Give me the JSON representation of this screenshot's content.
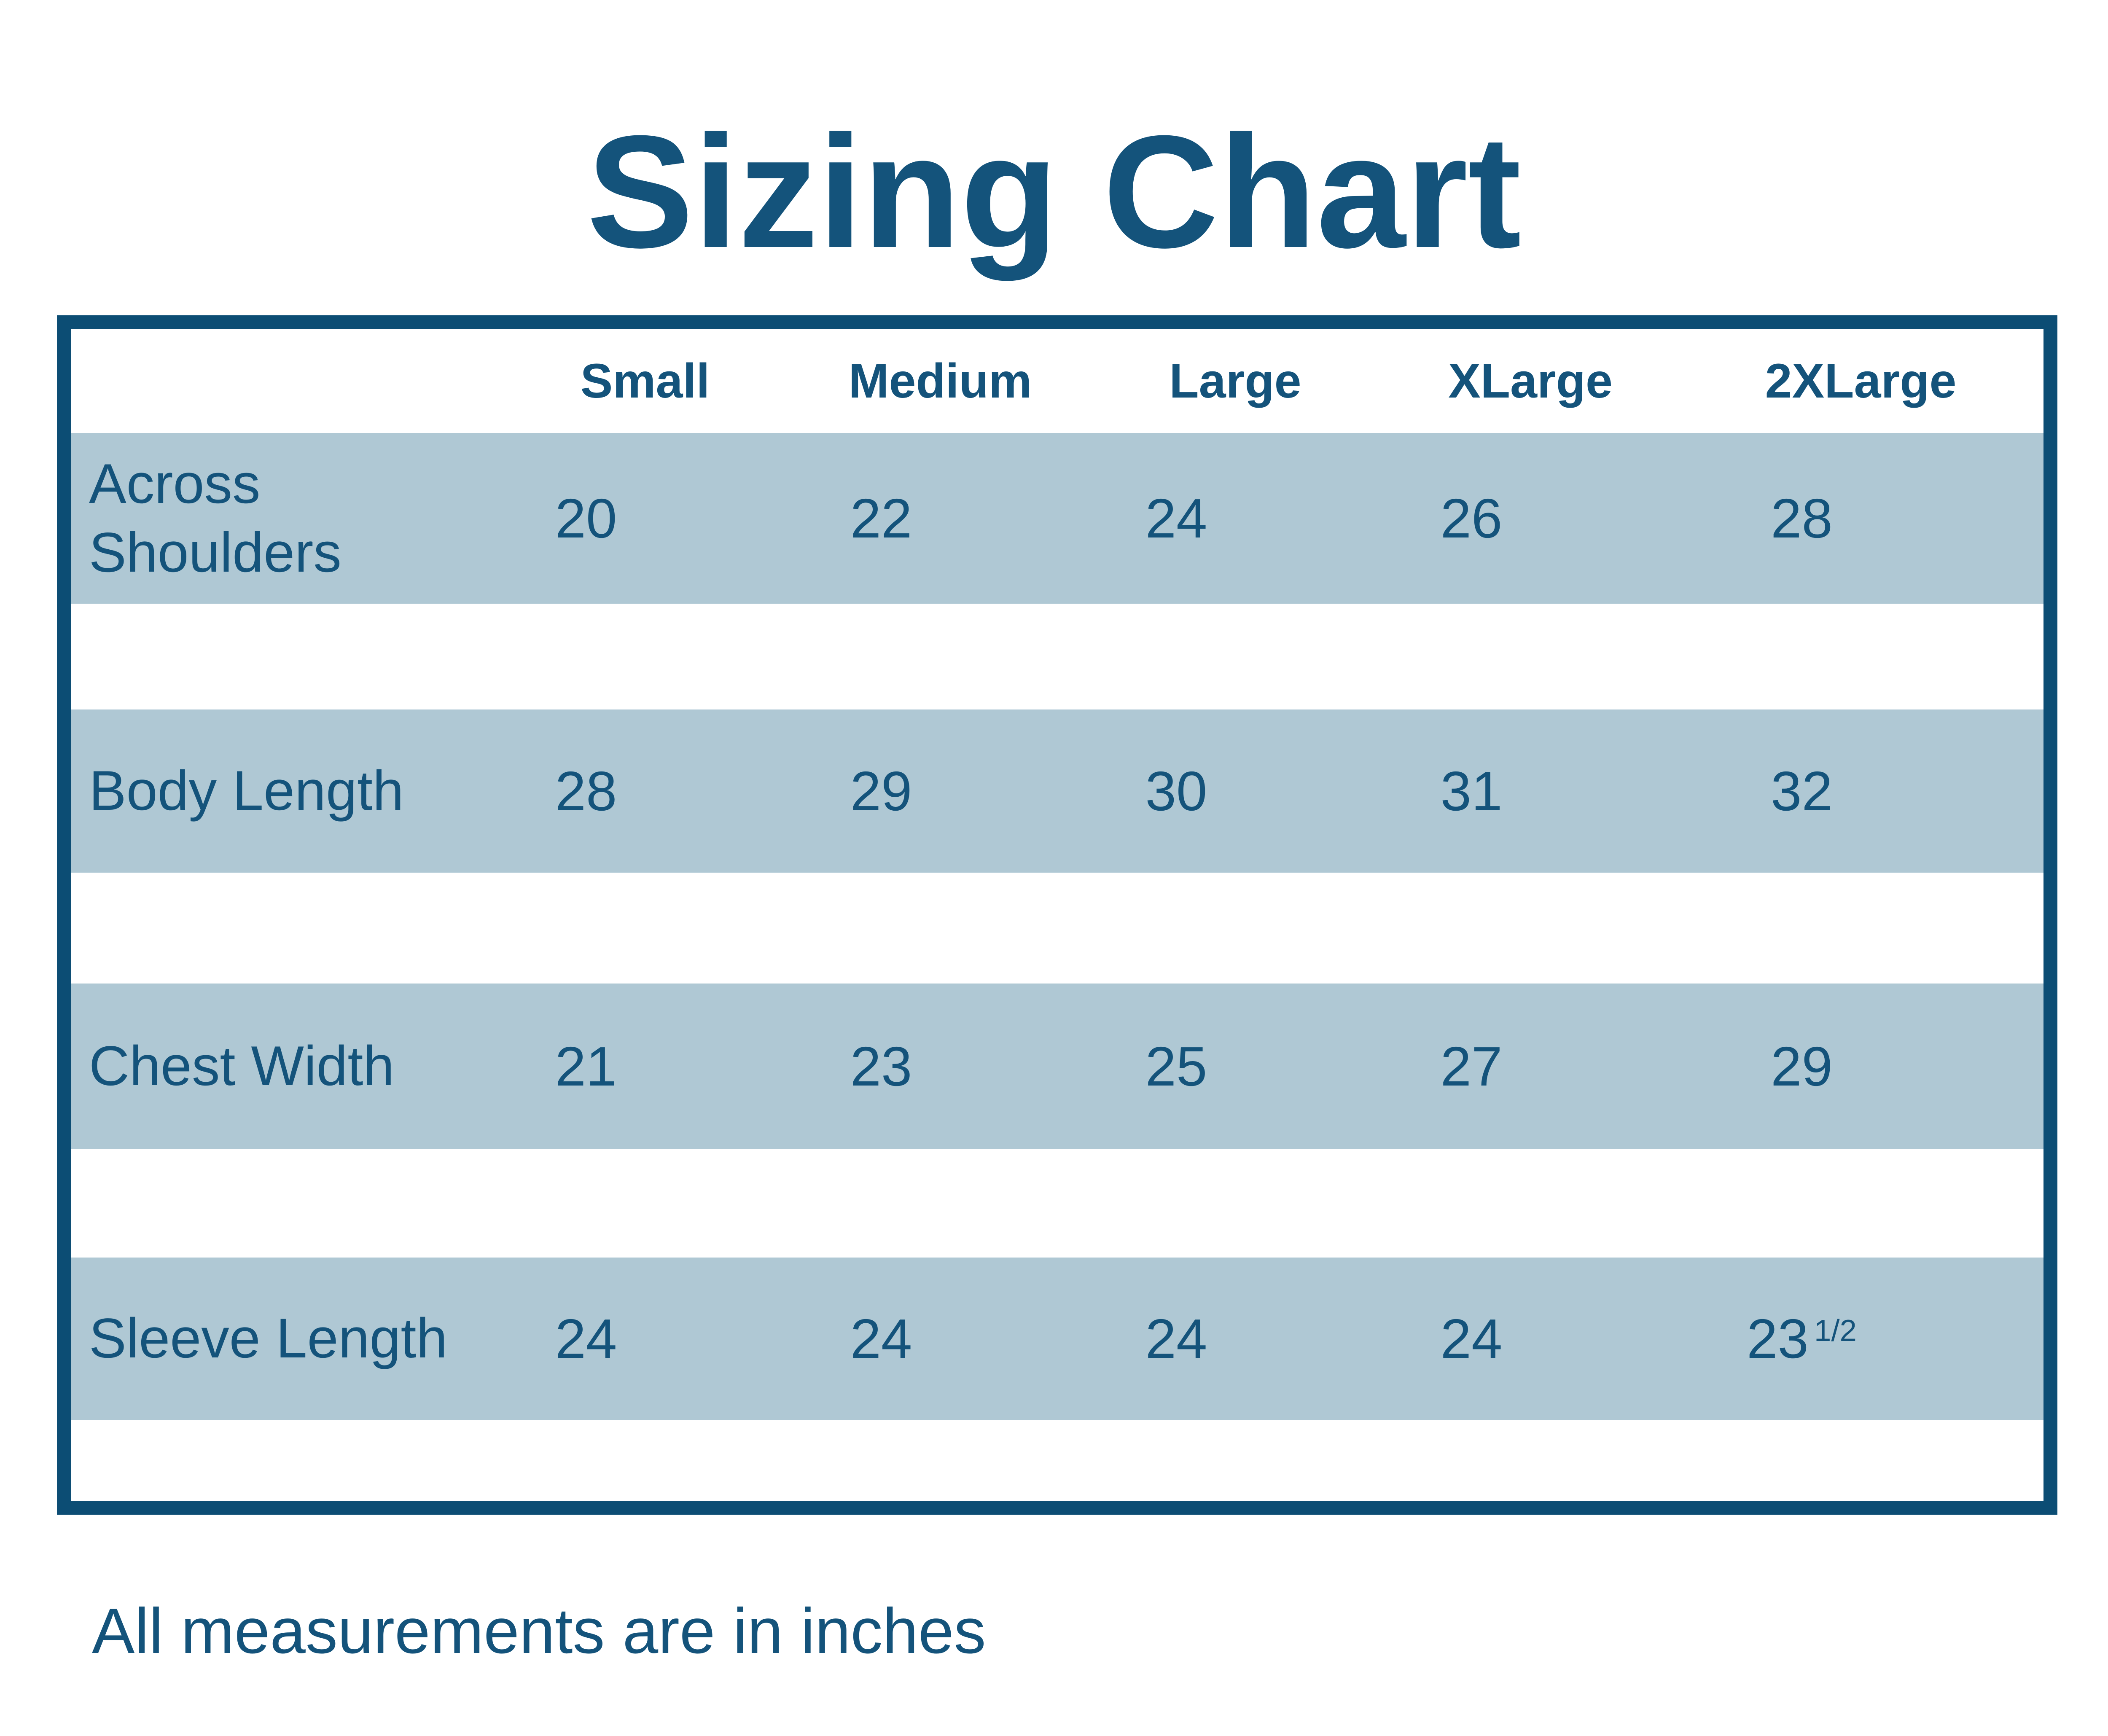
{
  "page": {
    "title": "Sizing Chart",
    "footnote": "All measurements are in inches"
  },
  "colors": {
    "border_dark": "#0c4d74",
    "text_teal": "#14537b",
    "band_blue": "#afc8d4",
    "background": "#ffffff"
  },
  "chart_data": {
    "type": "table",
    "title": "Sizing Chart",
    "columns": [
      "",
      "Small",
      "Medium",
      "Large",
      "XLarge",
      "2XLarge"
    ],
    "rows": [
      {
        "label": "Across Shoulders",
        "values": [
          "20",
          "22",
          "24",
          "26",
          "28"
        ]
      },
      {
        "label": "Body Length",
        "values": [
          "28",
          "29",
          "30",
          "31",
          "32"
        ]
      },
      {
        "label": "Chest Width",
        "values": [
          "21",
          "23",
          "25",
          "27",
          "29"
        ]
      },
      {
        "label": "Sleeve Length",
        "values": [
          "24",
          "24",
          "24",
          "24",
          "23 1/2"
        ]
      }
    ],
    "note": "All measurements are in inches",
    "layout": {
      "legend_position": "none",
      "grid": "horizontal-bands",
      "units": "inches"
    }
  }
}
